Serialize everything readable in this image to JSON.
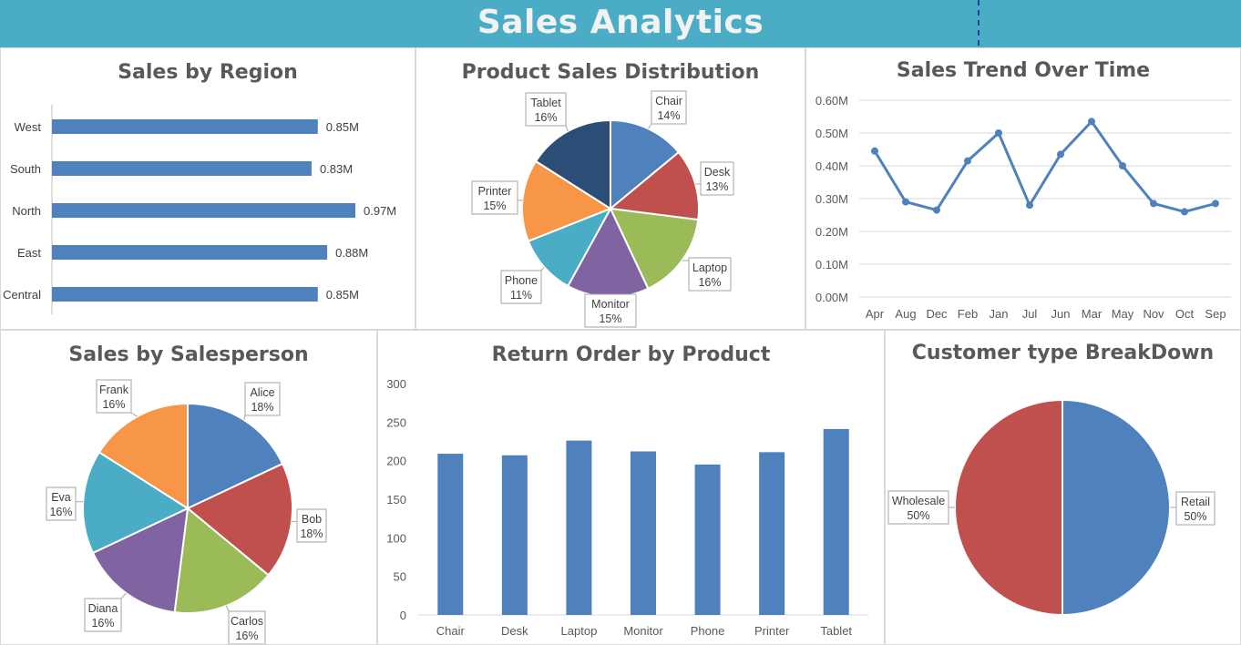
{
  "header": {
    "title": "Sales Analytics"
  },
  "colors": {
    "header_bg": "#4bacc6",
    "blue": "#4f81bd",
    "red": "#c0504d",
    "green": "#9bbb59",
    "purple": "#8064a2",
    "teal": "#4bacc6",
    "orange": "#f79646",
    "navy": "#2c4d75"
  },
  "chart_data": [
    {
      "id": "sales-by-region",
      "type": "bar",
      "orientation": "horizontal",
      "title": "Sales by Region",
      "categories": [
        "West",
        "South",
        "North",
        "East",
        "Central"
      ],
      "values": [
        0.85,
        0.83,
        0.97,
        0.88,
        0.85
      ],
      "value_labels": [
        "0.85M",
        "0.83M",
        "0.97M",
        "0.88M",
        "0.85M"
      ],
      "xlim": [
        0,
        1.0
      ],
      "grid": false,
      "legend": "none"
    },
    {
      "id": "product-sales-distribution",
      "type": "pie",
      "title": "Product Sales Distribution",
      "labels": [
        "Chair",
        "Desk",
        "Laptop",
        "Monitor",
        "Phone",
        "Printer",
        "Tablet"
      ],
      "values": [
        14,
        13,
        16,
        15,
        11,
        15,
        16
      ],
      "pct_labels": [
        "14%",
        "13%",
        "16%",
        "15%",
        "11%",
        "15%",
        "16%"
      ],
      "colors": [
        "#4f81bd",
        "#c0504d",
        "#9bbb59",
        "#8064a2",
        "#4bacc6",
        "#f79646",
        "#2c4d75"
      ]
    },
    {
      "id": "sales-trend-over-time",
      "type": "line",
      "title": "Sales Trend Over Time",
      "x": [
        "Apr",
        "Aug",
        "Dec",
        "Feb",
        "Jan",
        "Jul",
        "Jun",
        "Mar",
        "May",
        "Nov",
        "Oct",
        "Sep"
      ],
      "y": [
        0.445,
        0.29,
        0.265,
        0.415,
        0.5,
        0.28,
        0.435,
        0.535,
        0.4,
        0.285,
        0.26,
        0.285
      ],
      "ylim": [
        0,
        0.6
      ],
      "yticks": [
        0,
        0.1,
        0.2,
        0.3,
        0.4,
        0.5,
        0.6
      ],
      "ytick_labels": [
        "0.00M",
        "0.10M",
        "0.20M",
        "0.30M",
        "0.40M",
        "0.50M",
        "0.60M"
      ],
      "grid": true
    },
    {
      "id": "sales-by-salesperson",
      "type": "pie",
      "title": "Sales by Salesperson",
      "labels": [
        "Alice",
        "Bob",
        "Carlos",
        "Diana",
        "Eva",
        "Frank"
      ],
      "values": [
        18,
        18,
        16,
        16,
        16,
        16
      ],
      "pct_labels": [
        "18%",
        "18%",
        "16%",
        "16%",
        "16%",
        "16%"
      ],
      "colors": [
        "#4f81bd",
        "#c0504d",
        "#9bbb59",
        "#8064a2",
        "#4bacc6",
        "#f79646"
      ]
    },
    {
      "id": "return-order-by-product",
      "type": "bar",
      "title": "Return Order by Product",
      "categories": [
        "Chair",
        "Desk",
        "Laptop",
        "Monitor",
        "Phone",
        "Printer",
        "Tablet"
      ],
      "values": [
        209,
        207,
        226,
        212,
        195,
        211,
        241
      ],
      "ylim": [
        0,
        300
      ],
      "yticks": [
        0,
        50,
        100,
        150,
        200,
        250,
        300
      ],
      "ytick_labels": [
        "0",
        "50",
        "100",
        "150",
        "200",
        "250",
        "300"
      ],
      "grid": false
    },
    {
      "id": "customer-type-breakdown",
      "type": "pie",
      "title": "Customer type BreakDown",
      "labels": [
        "Retail",
        "Wholesale"
      ],
      "values": [
        50,
        50
      ],
      "pct_labels": [
        "50%",
        "50%"
      ],
      "colors": [
        "#4f81bd",
        "#c0504d"
      ]
    }
  ]
}
